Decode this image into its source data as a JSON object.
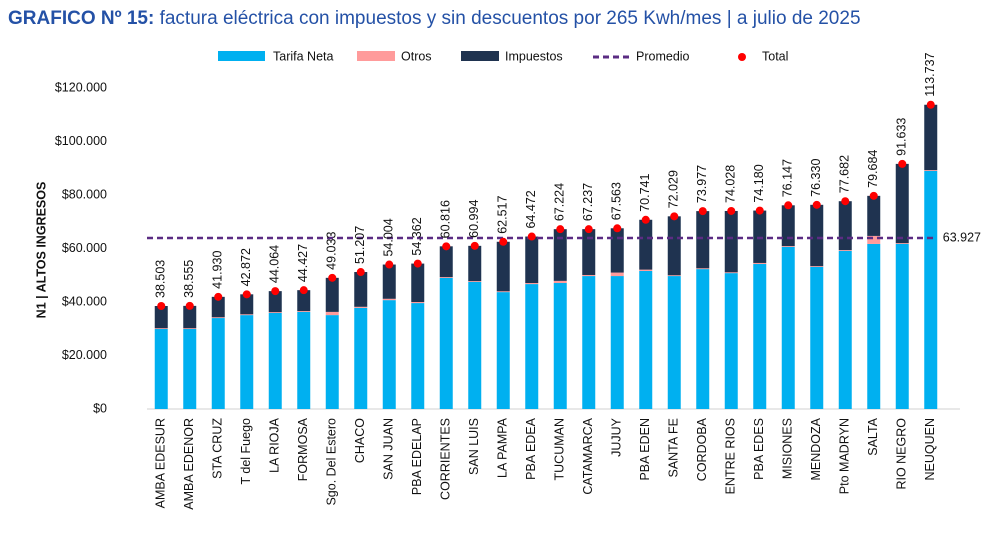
{
  "chart_data": {
    "type": "bar",
    "stacked": true,
    "title_bold": "GRAFICO Nº 15:",
    "title": "factura eléctrica con impuestos y sin descuentos por 265 Kwh/mes | a julio de 2025",
    "y_label": "N1 | ALTOS INGRESOS",
    "categories": [
      "AMBA EDESUR",
      "AMBA EDENOR",
      "STA CRUZ",
      "T del Fuego",
      "LA RIOJA",
      "FORMOSA",
      "Sgo. Del Estero",
      "CHACO",
      "SAN JUAN",
      "PBA EDELAP",
      "CORRIENTES",
      "SAN LUIS",
      "LA PAMPA",
      "PBA EDEA",
      "TUCUMAN",
      "CATAMARCA",
      "JUJUY",
      "PBA EDEN",
      "SANTA FE",
      "CORDOBA",
      "ENTRE RIOS",
      "PBA EDES",
      "MISIONES",
      "MENDOZA",
      "Pto MADRYN",
      "SALTA",
      "RIO NEGRO",
      "NEUQUEN"
    ],
    "series": [
      {
        "name": "Tarifa Neta",
        "color": "#00b0f0",
        "values": [
          29900,
          29900,
          34000,
          35100,
          35900,
          36300,
          35100,
          37800,
          40700,
          39600,
          49000,
          47500,
          43700,
          46700,
          47100,
          49700,
          49700,
          51600,
          49700,
          52300,
          50800,
          54200,
          60600,
          53100,
          59100,
          61700,
          61700,
          89000
        ]
      },
      {
        "name": "Otros",
        "color": "#ff9b9b",
        "values": [
          300,
          300,
          300,
          300,
          300,
          300,
          1200,
          400,
          500,
          400,
          300,
          300,
          300,
          400,
          800,
          400,
          1300,
          500,
          300,
          300,
          300,
          400,
          300,
          300,
          300,
          3000,
          300,
          300
        ]
      },
      {
        "name": "Impuestos",
        "color": "#1f3350",
        "values": [
          8303,
          8355,
          7630,
          7472,
          7864,
          7827,
          12733,
          13007,
          12804,
          14362,
          11516,
          13194,
          18517,
          17372,
          19324,
          17137,
          16563,
          18641,
          22029,
          21377,
          22928,
          19580,
          15247,
          22930,
          18282,
          14984,
          29633,
          24437
        ]
      }
    ],
    "total": {
      "name": "Total",
      "color": "#ff0000",
      "values": [
        38503,
        38555,
        41930,
        42872,
        44064,
        44427,
        49033,
        51207,
        54004,
        54362,
        60816,
        60994,
        62517,
        64472,
        67224,
        67237,
        67563,
        70741,
        72029,
        73977,
        74028,
        74180,
        76147,
        76330,
        77682,
        79684,
        91633,
        113737
      ],
      "value_labels": [
        "38.503",
        "38.555",
        "41.930",
        "42.872",
        "44.064",
        "44.427",
        "49.033",
        "51.207",
        "54.004",
        "54.362",
        "60.816",
        "60.994",
        "62.517",
        "64.472",
        "67.224",
        "67.237",
        "67.563",
        "70.741",
        "72.029",
        "73.977",
        "74.028",
        "74.180",
        "76.147",
        "76.330",
        "77.682",
        "79.684",
        "91.633",
        "113.737"
      ]
    },
    "reference_line": {
      "name": "Promedio",
      "value": 63927,
      "label": "63.927",
      "color": "#5b2c83"
    },
    "ylim": [
      0,
      120000
    ],
    "yticks": [
      {
        "value": 0,
        "label": "$0"
      },
      {
        "value": 20000,
        "label": "$20.000"
      },
      {
        "value": 40000,
        "label": "$40.000"
      },
      {
        "value": 60000,
        "label": "$60.000"
      },
      {
        "value": 80000,
        "label": "$80.000"
      },
      {
        "value": 100000,
        "label": "$100.000"
      },
      {
        "value": 120000,
        "label": "$120.000"
      }
    ]
  }
}
